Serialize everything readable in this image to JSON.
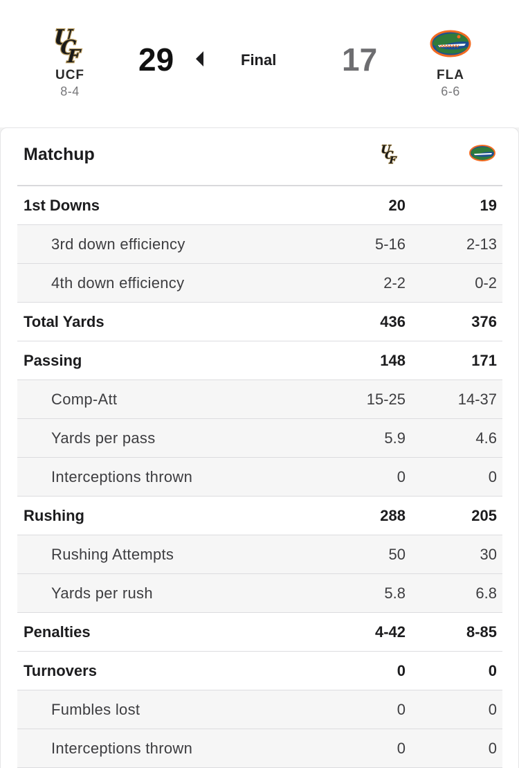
{
  "scoreboard": {
    "home": {
      "abbr": "UCF",
      "record": "8-4",
      "score": "29",
      "logo": "ucf-logo-icon"
    },
    "away": {
      "abbr": "FLA",
      "record": "6-6",
      "score": "17",
      "logo": "florida-gator-logo-icon"
    },
    "status": "Final",
    "winner_indicator": "left-arrow-icon"
  },
  "matchup": {
    "title": "Matchup",
    "rows": [
      {
        "label": "1st Downs",
        "home": "20",
        "away": "19",
        "sub": false
      },
      {
        "label": "3rd down efficiency",
        "home": "5-16",
        "away": "2-13",
        "sub": true
      },
      {
        "label": "4th down efficiency",
        "home": "2-2",
        "away": "0-2",
        "sub": true
      },
      {
        "label": "Total Yards",
        "home": "436",
        "away": "376",
        "sub": false
      },
      {
        "label": "Passing",
        "home": "148",
        "away": "171",
        "sub": false
      },
      {
        "label": "Comp-Att",
        "home": "15-25",
        "away": "14-37",
        "sub": true
      },
      {
        "label": "Yards per pass",
        "home": "5.9",
        "away": "4.6",
        "sub": true
      },
      {
        "label": "Interceptions thrown",
        "home": "0",
        "away": "0",
        "sub": true
      },
      {
        "label": "Rushing",
        "home": "288",
        "away": "205",
        "sub": false
      },
      {
        "label": "Rushing Attempts",
        "home": "50",
        "away": "30",
        "sub": true
      },
      {
        "label": "Yards per rush",
        "home": "5.8",
        "away": "6.8",
        "sub": true
      },
      {
        "label": "Penalties",
        "home": "4-42",
        "away": "8-85",
        "sub": false
      },
      {
        "label": "Turnovers",
        "home": "0",
        "away": "0",
        "sub": false
      },
      {
        "label": "Fumbles lost",
        "home": "0",
        "away": "0",
        "sub": true
      },
      {
        "label": "Interceptions thrown",
        "home": "0",
        "away": "0",
        "sub": true
      }
    ]
  },
  "colors": {
    "ucf_gold": "#b89b5e",
    "ucf_black": "#1a1a1a",
    "gator_orange": "#f26b21",
    "gator_blue": "#1d4f91",
    "gator_green": "#2f7a3b"
  }
}
